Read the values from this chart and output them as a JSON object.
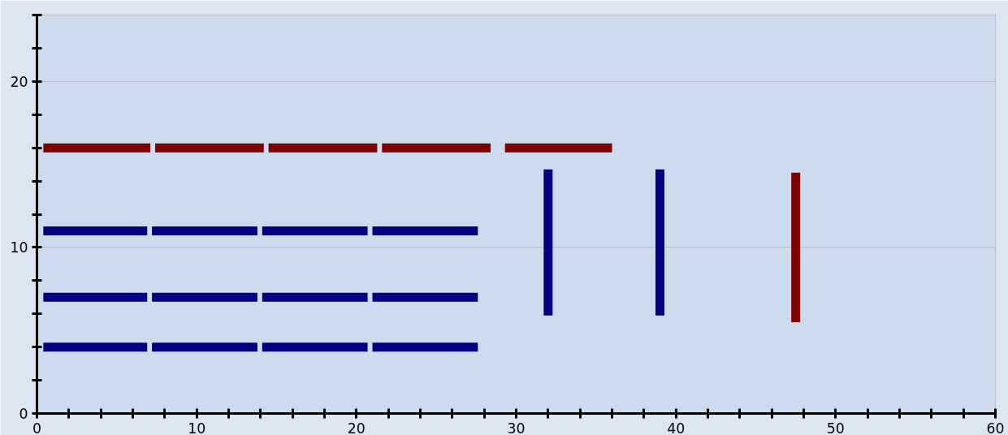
{
  "chart_data": {
    "type": "line",
    "xlim": [
      0,
      60
    ],
    "ylim": [
      0,
      24
    ],
    "xticks": [
      0,
      {
        "value": 2,
        "label": null
      },
      {
        "value": 4,
        "label": null
      },
      {
        "value": 6,
        "label": null
      },
      {
        "value": 8,
        "label": null
      },
      10,
      {
        "value": 12,
        "label": null
      },
      {
        "value": 14,
        "label": null
      },
      {
        "value": 16,
        "label": null
      },
      {
        "value": 18,
        "label": null
      },
      20,
      {
        "value": 22,
        "label": null
      },
      {
        "value": 24,
        "label": null
      },
      {
        "value": 26,
        "label": null
      },
      {
        "value": 28,
        "label": null
      },
      30,
      {
        "value": 32,
        "label": null
      },
      {
        "value": 34,
        "label": null
      },
      {
        "value": 36,
        "label": null
      },
      {
        "value": 38,
        "label": null
      },
      40,
      {
        "value": 42,
        "label": null
      },
      {
        "value": 44,
        "label": null
      },
      {
        "value": 46,
        "label": null
      },
      {
        "value": 48,
        "label": null
      },
      50,
      {
        "value": 52,
        "label": null
      },
      {
        "value": 54,
        "label": null
      },
      {
        "value": 56,
        "label": null
      },
      {
        "value": 58,
        "label": null
      },
      60
    ],
    "yticks": [
      0,
      {
        "value": 2,
        "label": null
      },
      {
        "value": 4,
        "label": null
      },
      {
        "value": 6,
        "label": null
      },
      {
        "value": 8,
        "label": null
      },
      10,
      {
        "value": 12,
        "label": null
      },
      {
        "value": 14,
        "label": null
      },
      {
        "value": 16,
        "label": null
      },
      {
        "value": 18,
        "label": null
      },
      20,
      {
        "value": 22,
        "label": null
      },
      {
        "value": 24,
        "label": null
      }
    ],
    "grid": "y",
    "series": [
      {
        "color": "#800000",
        "x": [
          0.4,
          7.1
        ],
        "values": [
          16,
          16
        ]
      },
      {
        "color": "#800000",
        "x": [
          7.4,
          14.2
        ],
        "values": [
          16,
          16
        ]
      },
      {
        "color": "#800000",
        "x": [
          14.5,
          21.3
        ],
        "values": [
          16,
          16
        ]
      },
      {
        "color": "#800000",
        "x": [
          21.6,
          28.4
        ],
        "values": [
          16,
          16
        ]
      },
      {
        "color": "#800000",
        "x": [
          29.3,
          36
        ],
        "values": [
          16,
          16
        ]
      },
      {
        "color": "#000080",
        "x": [
          0.4,
          6.9
        ],
        "values": [
          11,
          11
        ]
      },
      {
        "color": "#000080",
        "x": [
          7.2,
          13.8
        ],
        "values": [
          11,
          11
        ]
      },
      {
        "color": "#000080",
        "x": [
          14.1,
          20.7
        ],
        "values": [
          11,
          11
        ]
      },
      {
        "color": "#000080",
        "x": [
          21,
          27.6
        ],
        "values": [
          11,
          11
        ]
      },
      {
        "color": "#000080",
        "x": [
          0.4,
          6.9
        ],
        "values": [
          7,
          7
        ]
      },
      {
        "color": "#000080",
        "x": [
          7.2,
          13.8
        ],
        "values": [
          7,
          7
        ]
      },
      {
        "color": "#000080",
        "x": [
          14.1,
          20.7
        ],
        "values": [
          7,
          7
        ]
      },
      {
        "color": "#000080",
        "x": [
          21,
          27.6
        ],
        "values": [
          7,
          7
        ]
      },
      {
        "color": "#000080",
        "x": [
          0.4,
          6.9
        ],
        "values": [
          4,
          4
        ]
      },
      {
        "color": "#000080",
        "x": [
          7.2,
          13.8
        ],
        "values": [
          4,
          4
        ]
      },
      {
        "color": "#000080",
        "x": [
          14.1,
          20.7
        ],
        "values": [
          4,
          4
        ]
      },
      {
        "color": "#000080",
        "x": [
          21,
          27.6
        ],
        "values": [
          4,
          4
        ]
      },
      {
        "color": "#000080",
        "x": [
          32,
          32
        ],
        "values": [
          5.9,
          14.7
        ]
      },
      {
        "color": "#000080",
        "x": [
          39,
          39
        ],
        "values": [
          5.9,
          14.7
        ]
      },
      {
        "color": "#800000",
        "x": [
          47.5,
          47.5
        ],
        "values": [
          5.5,
          14.5
        ]
      }
    ]
  }
}
